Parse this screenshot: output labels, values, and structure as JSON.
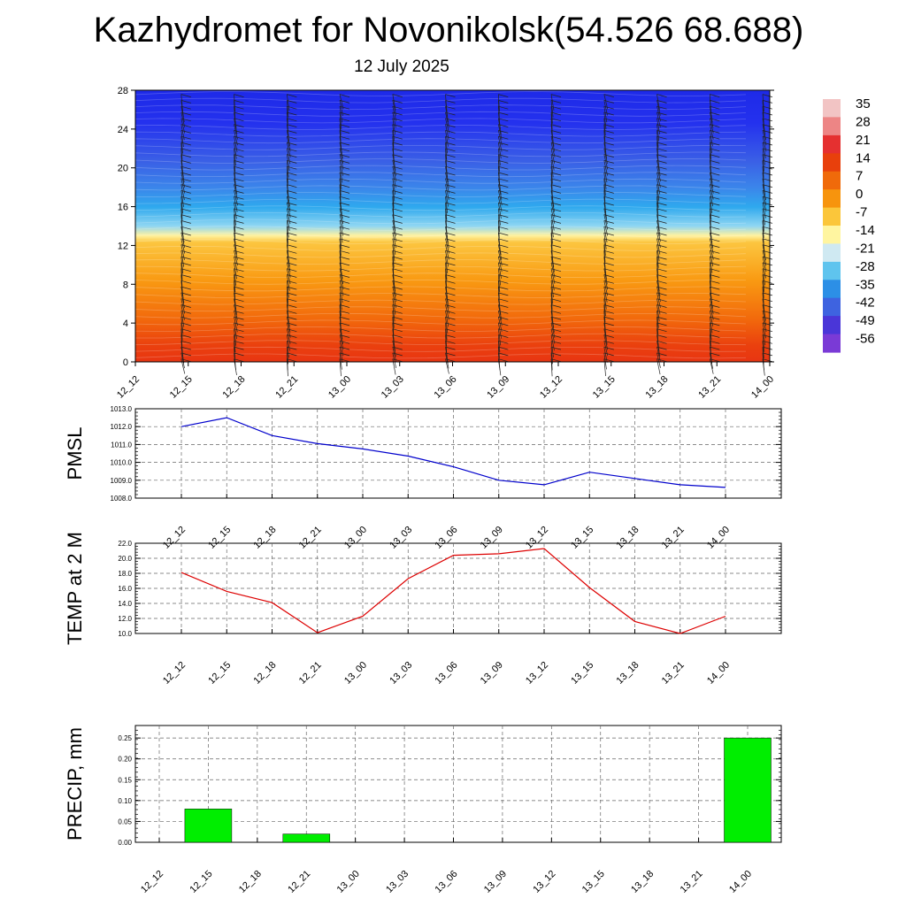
{
  "title": "Kazhydromet for Novonikolsk(54.526 68.688)",
  "subtitle": "12 July 2025",
  "time_labels": [
    "12_12",
    "12_15",
    "12_18",
    "12_21",
    "13_00",
    "13_03",
    "13_06",
    "13_09",
    "13_12",
    "13_15",
    "13_18",
    "13_21",
    "14_00"
  ],
  "colorbar": {
    "labels": [
      "35",
      "28",
      "21",
      "14",
      "7",
      "0",
      "-7",
      "-14",
      "-21",
      "-28",
      "-35",
      "-42",
      "-49",
      "-56"
    ],
    "colors": [
      "#f2c4c4",
      "#ed8585",
      "#e53030",
      "#e8400c",
      "#f06a0a",
      "#f7940d",
      "#fbc63a",
      "#fff5a0",
      "#cfe9f2",
      "#5fc4ee",
      "#2c8fe6",
      "#3e63e0",
      "#4a36d8",
      "#7a3ad6"
    ]
  },
  "chart_data": [
    {
      "type": "heatmap",
      "name": "temperature-wind-profile",
      "y_ticks": [
        0,
        4,
        8,
        12,
        16,
        20,
        24,
        28
      ],
      "ylim": [
        0,
        28
      ],
      "categories": [
        "12_12",
        "12_15",
        "12_18",
        "12_21",
        "13_00",
        "13_03",
        "13_06",
        "13_09",
        "13_12",
        "13_15",
        "13_18",
        "13_21",
        "14_00"
      ],
      "wind_barbs": true
    },
    {
      "type": "line",
      "ylabel": "PMSL",
      "categories": [
        "12_12",
        "12_15",
        "12_18",
        "12_21",
        "13_00",
        "13_03",
        "13_06",
        "13_09",
        "13_12",
        "13_15",
        "13_18",
        "13_21",
        "14_00"
      ],
      "values": [
        1012.0,
        1012.5,
        1011.5,
        1011.05,
        1010.75,
        1010.35,
        1009.75,
        1009.0,
        1008.75,
        1009.45,
        1009.1,
        1008.75,
        1008.6
      ],
      "ylim": [
        1008.0,
        1013.0
      ],
      "y_ticks": [
        "1008.0",
        "1009.0",
        "1010.0",
        "1011.0",
        "1012.0",
        "1013.0"
      ],
      "color": "#0000cc",
      "grid": true
    },
    {
      "type": "line",
      "ylabel": "TEMP at 2 M",
      "categories": [
        "12_12",
        "12_15",
        "12_18",
        "12_21",
        "13_00",
        "13_03",
        "13_06",
        "13_09",
        "13_12",
        "13_15",
        "13_18",
        "13_21",
        "14_00"
      ],
      "values": [
        18.1,
        15.6,
        14.1,
        10.1,
        12.3,
        17.3,
        20.4,
        20.6,
        21.3,
        16.1,
        11.6,
        10.0,
        12.3
      ],
      "ylim": [
        10.0,
        22.0
      ],
      "y_ticks": [
        "10.0",
        "12.0",
        "14.0",
        "16.0",
        "18.0",
        "20.0",
        "22.0"
      ],
      "color": "#dd0000",
      "grid": true
    },
    {
      "type": "bar",
      "ylabel": "PRECIP, mm",
      "categories": [
        "12_12",
        "12_15",
        "12_18",
        "12_21",
        "13_00",
        "13_03",
        "13_06",
        "13_09",
        "13_12",
        "13_15",
        "13_18",
        "13_21",
        "14_00"
      ],
      "values": [
        0,
        0.08,
        0,
        0.02,
        0,
        0,
        0,
        0,
        0,
        0,
        0,
        0,
        0.25
      ],
      "ylim": [
        0,
        0.28
      ],
      "y_ticks": [
        "0.00",
        "0.05",
        "0.10",
        "0.15",
        "0.20",
        "0.25"
      ],
      "color": "#00ee00",
      "grid": true
    }
  ]
}
